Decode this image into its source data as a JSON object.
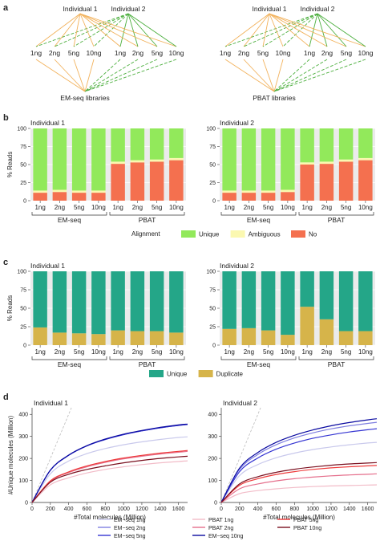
{
  "panels": {
    "a": "a",
    "b": "b",
    "c": "c",
    "d": "d"
  },
  "panel_a": {
    "trees": [
      {
        "top_labels": [
          "Individual 1",
          "Individual 2"
        ],
        "middle_labels": [
          "1ng",
          "2ng",
          "5ng",
          "10ng",
          "1ng",
          "2ng",
          "5ng",
          "10ng"
        ],
        "bottom_label": "EM-seq libraries"
      },
      {
        "top_labels": [
          "Individual 1",
          "Individual 2"
        ],
        "middle_labels": [
          "1ng",
          "2ng",
          "5ng",
          "10ng",
          "1ng",
          "2ng",
          "5ng",
          "10ng"
        ],
        "bottom_label": "PBAT libraries"
      }
    ],
    "colors": {
      "individual_1": "#f2b25c",
      "individual_2": "#4caf3e"
    }
  },
  "chart_data": [
    {
      "type": "bar",
      "panel": "b",
      "subtitle": "Individual 1",
      "ylabel": "% Reads",
      "ylim": [
        0,
        100
      ],
      "yticks": [
        "0",
        "25",
        "50",
        "75",
        "100"
      ],
      "categories": [
        "1ng",
        "2ng",
        "5ng",
        "10ng",
        "1ng",
        "2ng",
        "5ng",
        "10ng"
      ],
      "groups": [
        {
          "name": "EM-seq",
          "categories": [
            "1ng",
            "2ng",
            "5ng",
            "10ng"
          ]
        },
        {
          "name": "PBAT",
          "categories": [
            "1ng",
            "2ng",
            "5ng",
            "10ng"
          ]
        }
      ],
      "stacked": true,
      "series": [
        {
          "name": "No",
          "color": "#f4704f",
          "values": [
            11,
            12,
            11,
            11,
            51,
            53,
            54,
            56
          ]
        },
        {
          "name": "Ambiguous",
          "color": "#fbf8b0",
          "values": [
            3,
            3,
            3,
            3,
            3,
            3,
            3,
            3
          ]
        },
        {
          "name": "Unique",
          "color": "#92e95b",
          "values": [
            86,
            85,
            86,
            86,
            46,
            44,
            43,
            41
          ]
        }
      ]
    },
    {
      "type": "bar",
      "panel": "b",
      "subtitle": "Individual 2",
      "ylabel": "",
      "ylim": [
        0,
        100
      ],
      "yticks": [
        "0",
        "25",
        "50",
        "75",
        "100"
      ],
      "categories": [
        "1ng",
        "2ng",
        "5ng",
        "10ng",
        "1ng",
        "2ng",
        "5ng",
        "10ng"
      ],
      "groups": [
        {
          "name": "EM-seq",
          "categories": [
            "1ng",
            "2ng",
            "5ng",
            "10ng"
          ]
        },
        {
          "name": "PBAT",
          "categories": [
            "1ng",
            "2ng",
            "5ng",
            "10ng"
          ]
        }
      ],
      "stacked": true,
      "series": [
        {
          "name": "No",
          "color": "#f4704f",
          "values": [
            11,
            11,
            11,
            12,
            50,
            51,
            54,
            56
          ]
        },
        {
          "name": "Ambiguous",
          "color": "#fbf8b0",
          "values": [
            3,
            3,
            3,
            3,
            3,
            3,
            3,
            3
          ]
        },
        {
          "name": "Unique",
          "color": "#92e95b",
          "values": [
            86,
            86,
            86,
            85,
            47,
            46,
            43,
            41
          ]
        }
      ]
    },
    {
      "type": "bar",
      "panel": "c",
      "subtitle": "Individual 1",
      "ylabel": "% Reads",
      "ylim": [
        0,
        100
      ],
      "yticks": [
        "0",
        "25",
        "50",
        "75",
        "100"
      ],
      "categories": [
        "1ng",
        "2ng",
        "5ng",
        "10ng",
        "1ng",
        "2ng",
        "5ng",
        "10ng"
      ],
      "groups": [
        {
          "name": "EM-seq",
          "categories": [
            "1ng",
            "2ng",
            "5ng",
            "10ng"
          ]
        },
        {
          "name": "PBAT",
          "categories": [
            "1ng",
            "2ng",
            "5ng",
            "10ng"
          ]
        }
      ],
      "stacked": true,
      "series": [
        {
          "name": "Duplicate",
          "color": "#d6b44a",
          "values": [
            24,
            17,
            16,
            15,
            20,
            19,
            19,
            17
          ]
        },
        {
          "name": "Unique",
          "color": "#24a688",
          "values": [
            76,
            83,
            84,
            85,
            80,
            81,
            81,
            83
          ]
        }
      ]
    },
    {
      "type": "bar",
      "panel": "c",
      "subtitle": "Individual 2",
      "ylabel": "",
      "ylim": [
        0,
        100
      ],
      "yticks": [
        "0",
        "25",
        "50",
        "75",
        "100"
      ],
      "categories": [
        "1ng",
        "2ng",
        "5ng",
        "10ng",
        "1ng",
        "2ng",
        "5ng",
        "10ng"
      ],
      "groups": [
        {
          "name": "EM-seq",
          "categories": [
            "1ng",
            "2ng",
            "5ng",
            "10ng"
          ]
        },
        {
          "name": "PBAT",
          "categories": [
            "1ng",
            "2ng",
            "5ng",
            "10ng"
          ]
        }
      ],
      "stacked": true,
      "series": [
        {
          "name": "Duplicate",
          "color": "#d6b44a",
          "values": [
            22,
            23,
            20,
            14,
            52,
            35,
            19,
            19
          ]
        },
        {
          "name": "Unique",
          "color": "#24a688",
          "values": [
            78,
            77,
            80,
            86,
            48,
            65,
            81,
            81
          ]
        }
      ]
    },
    {
      "type": "line",
      "panel": "d",
      "subtitle": "Individual 1",
      "xlabel": "#Total molecules (Million)",
      "ylabel": "#Unique molecules (Million)",
      "xlim": [
        0,
        1700
      ],
      "ylim": [
        0,
        430
      ],
      "xticks": [
        "0",
        "200",
        "400",
        "600",
        "800",
        "1000",
        "1200",
        "1400",
        "1600"
      ],
      "yticks": [
        "0",
        "100",
        "200",
        "300",
        "400"
      ],
      "reference_line": {
        "style": "dashed",
        "color": "#bbbbbb",
        "x": [
          0,
          430
        ],
        "y": [
          0,
          430
        ]
      },
      "series": [
        {
          "name": "EM−seq 1ng",
          "color": "#c9c9ec",
          "x": [
            0,
            200,
            400,
            600,
            800,
            1000,
            1200,
            1400,
            1600,
            1700
          ],
          "y": [
            0,
            130,
            188,
            222,
            245,
            262,
            275,
            286,
            295,
            298
          ]
        },
        {
          "name": "EM−seq 2ng",
          "color": "#7f7fe0",
          "x": [
            0,
            200,
            400,
            600,
            800,
            1000,
            1200,
            1400,
            1600,
            1700
          ],
          "y": [
            0,
            146,
            214,
            257,
            286,
            308,
            325,
            339,
            350,
            354
          ]
        },
        {
          "name": "EM−seq 5ng",
          "color": "#3535d2",
          "x": [
            0,
            200,
            400,
            600,
            800,
            1000,
            1200,
            1400,
            1600,
            1700
          ],
          "y": [
            0,
            146,
            214,
            257,
            286,
            308,
            325,
            339,
            350,
            354
          ]
        },
        {
          "name": "EM−seq 10ng",
          "color": "#0a0aa0",
          "x": [
            0,
            200,
            400,
            600,
            800,
            1000,
            1200,
            1400,
            1600,
            1700
          ],
          "y": [
            0,
            147,
            215,
            258,
            288,
            310,
            327,
            341,
            352,
            356
          ]
        },
        {
          "name": "PBAT 1ng",
          "color": "#f2bcc8",
          "x": [
            0,
            200,
            400,
            600,
            800,
            1000,
            1200,
            1400,
            1600,
            1700
          ],
          "y": [
            0,
            80,
            112,
            134,
            150,
            162,
            172,
            180,
            186,
            189
          ]
        },
        {
          "name": "PBAT 2ng",
          "color": "#e56f8c",
          "x": [
            0,
            200,
            400,
            600,
            800,
            1000,
            1200,
            1400,
            1600,
            1700
          ],
          "y": [
            0,
            96,
            136,
            162,
            182,
            198,
            210,
            220,
            228,
            232
          ]
        },
        {
          "name": "PBAT 5ng",
          "color": "#ee3a3a",
          "x": [
            0,
            200,
            400,
            600,
            800,
            1000,
            1200,
            1400,
            1600,
            1700
          ],
          "y": [
            0,
            98,
            139,
            166,
            186,
            202,
            214,
            224,
            232,
            236
          ]
        },
        {
          "name": "PBAT 10ng",
          "color": "#7a0f1e",
          "x": [
            0,
            200,
            400,
            600,
            800,
            1000,
            1200,
            1400,
            1600,
            1700
          ],
          "y": [
            0,
            92,
            128,
            150,
            166,
            180,
            191,
            200,
            207,
            210
          ]
        }
      ]
    },
    {
      "type": "line",
      "panel": "d",
      "subtitle": "Individual 2",
      "xlabel": "#Total molecules (Million)",
      "ylabel": "",
      "xlim": [
        0,
        1700
      ],
      "ylim": [
        0,
        430
      ],
      "xticks": [
        "0",
        "200",
        "400",
        "600",
        "800",
        "1000",
        "1200",
        "1400",
        "1600"
      ],
      "yticks": [
        "0",
        "100",
        "200",
        "300",
        "400"
      ],
      "reference_line": {
        "style": "dashed",
        "color": "#bbbbbb",
        "x": [
          0,
          430
        ],
        "y": [
          0,
          430
        ]
      },
      "series": [
        {
          "name": "EM−seq 1ng",
          "color": "#c9c9ec",
          "x": [
            0,
            200,
            400,
            600,
            800,
            1000,
            1200,
            1400,
            1600,
            1700
          ],
          "y": [
            0,
            122,
            172,
            203,
            224,
            240,
            252,
            262,
            270,
            273
          ]
        },
        {
          "name": "EM−seq 2ng",
          "color": "#7f7fe0",
          "x": [
            0,
            200,
            400,
            600,
            800,
            1000,
            1200,
            1400,
            1600,
            1700
          ],
          "y": [
            0,
            150,
            218,
            262,
            293,
            316,
            334,
            348,
            359,
            364
          ]
        },
        {
          "name": "EM−seq 5ng",
          "color": "#3535d2",
          "x": [
            0,
            200,
            400,
            600,
            800,
            1000,
            1200,
            1400,
            1600,
            1700
          ],
          "y": [
            0,
            140,
            202,
            242,
            270,
            291,
            307,
            320,
            330,
            335
          ]
        },
        {
          "name": "EM−seq 10ng",
          "color": "#0a0aa0",
          "x": [
            0,
            200,
            400,
            600,
            800,
            1000,
            1200,
            1400,
            1600,
            1700
          ],
          "y": [
            0,
            156,
            227,
            273,
            305,
            329,
            348,
            363,
            375,
            380
          ]
        },
        {
          "name": "PBAT 1ng",
          "color": "#f2bcc8",
          "x": [
            0,
            200,
            400,
            600,
            800,
            1000,
            1200,
            1400,
            1600,
            1700
          ],
          "y": [
            0,
            40,
            54,
            62,
            68,
            72,
            75,
            77,
            79,
            80
          ]
        },
        {
          "name": "PBAT 2ng",
          "color": "#e56f8c",
          "x": [
            0,
            200,
            400,
            600,
            800,
            1000,
            1200,
            1400,
            1600,
            1700
          ],
          "y": [
            0,
            62,
            84,
            98,
            108,
            115,
            121,
            125,
            128,
            130
          ]
        },
        {
          "name": "PBAT 5ng",
          "color": "#ee3a3a",
          "x": [
            0,
            200,
            400,
            600,
            800,
            1000,
            1200,
            1400,
            1600,
            1700
          ],
          "y": [
            0,
            78,
            108,
            127,
            140,
            150,
            157,
            162,
            166,
            168
          ]
        },
        {
          "name": "PBAT 10ng",
          "color": "#7a0f1e",
          "x": [
            0,
            200,
            400,
            600,
            800,
            1000,
            1200,
            1400,
            1600,
            1700
          ],
          "y": [
            0,
            84,
            117,
            137,
            151,
            161,
            169,
            175,
            179,
            181
          ]
        }
      ]
    }
  ],
  "legends": {
    "b": {
      "title": "Alignment",
      "items": [
        {
          "label": "Unique",
          "color": "#92e95b"
        },
        {
          "label": "Ambiguous",
          "color": "#fbf8b0"
        },
        {
          "label": "No",
          "color": "#f4704f"
        }
      ]
    },
    "c": {
      "title": "",
      "items": [
        {
          "label": "Unique",
          "color": "#24a688"
        },
        {
          "label": "Duplicate",
          "color": "#d6b44a"
        }
      ]
    },
    "d": {
      "items": [
        {
          "label": "EM−seq 1ng",
          "color": "#c9c9ec"
        },
        {
          "label": "EM−seq 2ng",
          "color": "#7f7fe0"
        },
        {
          "label": "EM−seq 5ng",
          "color": "#3535d2"
        },
        {
          "label": "EM−seq 10ng",
          "color": "#0a0aa0"
        },
        {
          "label": "PBAT 1ng",
          "color": "#f2bcc8"
        },
        {
          "label": "PBAT 2ng",
          "color": "#e56f8c"
        },
        {
          "label": "PBAT 5ng",
          "color": "#ee3a3a"
        },
        {
          "label": "PBAT 10ng",
          "color": "#7a0f1e"
        }
      ]
    }
  }
}
